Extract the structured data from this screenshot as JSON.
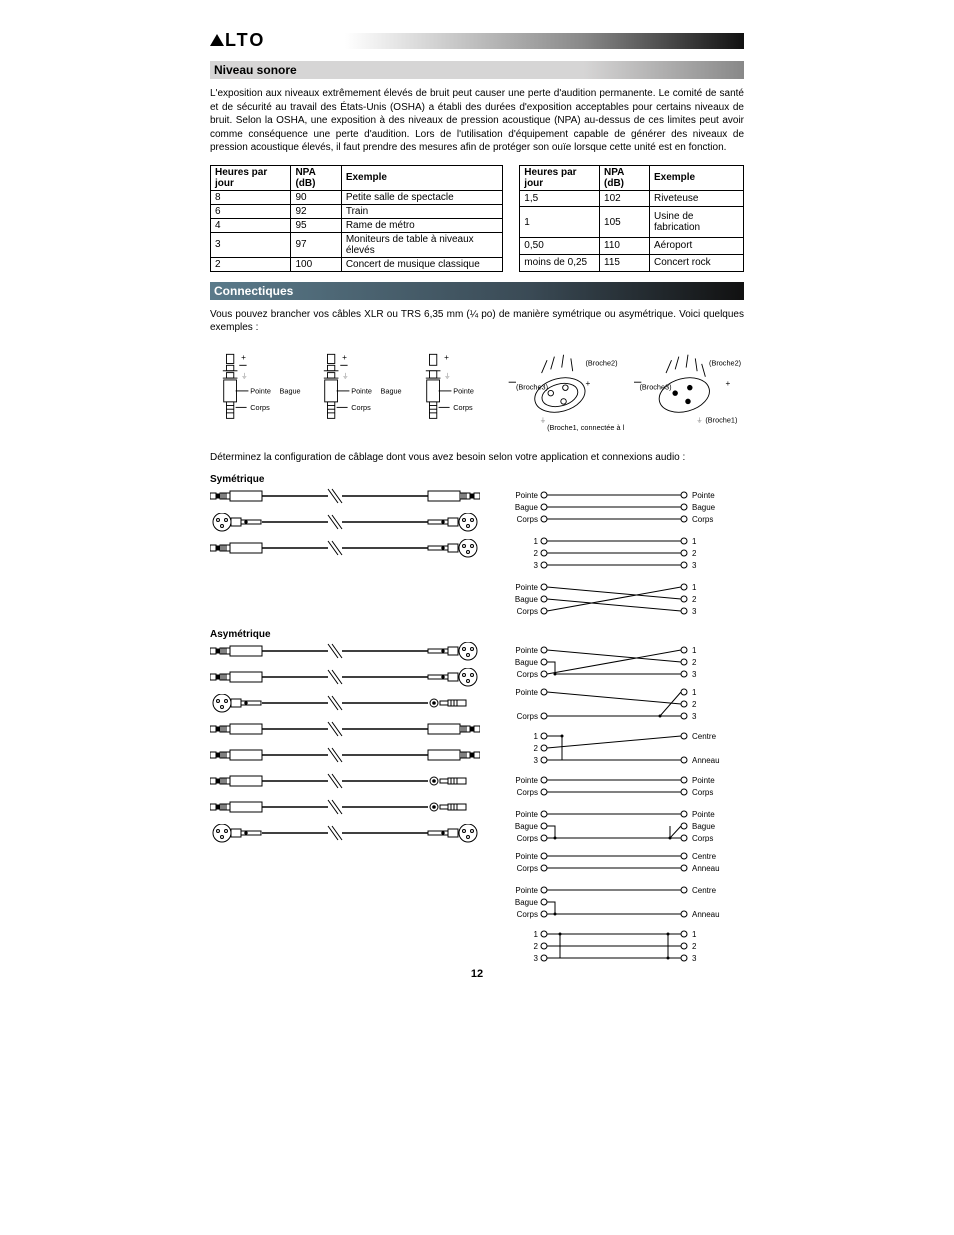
{
  "logo_text": "LTO",
  "section1_title": "Niveau sonore",
  "section1_body": "L'exposition aux niveaux extrêmement élevés de bruit peut causer une perte d'audition permanente. Le comité de santé et de sécurité au travail des États-Unis (OSHA) a établi des durées d'exposition acceptables pour certains niveaux de bruit. Selon la OSHA, une exposition à des niveaux de pression acoustique (NPA) au-dessus de ces limites peut avoir comme conséquence une perte d'audition. Lors de l'utilisation d'équipement capable de générer des niveaux de pression acoustique élevés, il faut prendre des mesures afin de protéger son ouïe lorsque cette unité est en fonction.",
  "table_headers": {
    "hours": "Heures par jour",
    "npa": "NPA (dB)",
    "example": "Exemple"
  },
  "table1_rows": [
    {
      "h": "8",
      "n": "90",
      "e": "Petite salle de spectacle"
    },
    {
      "h": "6",
      "n": "92",
      "e": "Train"
    },
    {
      "h": "4",
      "n": "95",
      "e": "Rame de métro"
    },
    {
      "h": "3",
      "n": "97",
      "e": "Moniteurs de table à niveaux élevés"
    },
    {
      "h": "2",
      "n": "100",
      "e": "Concert de musique classique"
    }
  ],
  "table2_rows": [
    {
      "h": "1,5",
      "n": "102",
      "e": "Riveteuse"
    },
    {
      "h": "1",
      "n": "105",
      "e": "Usine de fabrication"
    },
    {
      "h": "0,50",
      "n": "110",
      "e": "Aéroport"
    },
    {
      "h": "moins de 0,25",
      "n": "115",
      "e": "Concert rock"
    }
  ],
  "section2_title": "Connectiques",
  "section2_body": "Vous pouvez brancher vos câbles XLR ou TRS 6,35 mm (¼ po) de manière symétrique ou asymétrique. Voici quelques exemples :",
  "section2_body2": "Déterminez la configuration de câblage dont vous avez besoin selon votre application et connexions audio :",
  "labels": {
    "pointe": "Pointe",
    "bague": "Bague",
    "corps": "Corps",
    "broche1": "(Broche1)",
    "broche2": "(Broche2)",
    "broche3": "(Broche3)",
    "broche1c": "(Broche1, connectée à la broche3)",
    "centre": "Centre",
    "anneau": "Anneau",
    "n1": "1",
    "n2": "2",
    "n3": "3"
  },
  "sym_title": "Symétrique",
  "asym_title": "Asymétrique",
  "page_number": "12"
}
